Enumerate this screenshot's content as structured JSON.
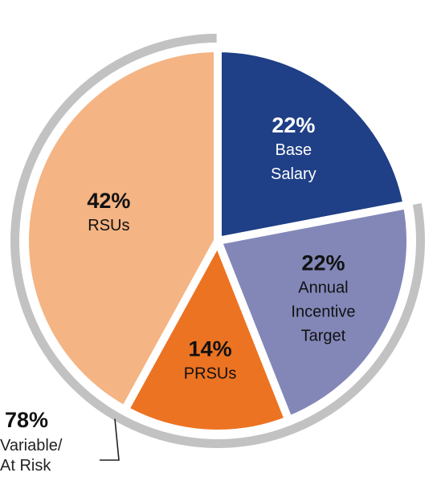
{
  "chart_data": {
    "type": "pie",
    "slices": [
      {
        "key": "base_salary",
        "value": 22,
        "pct_label": "22%",
        "label_lines": [
          "Base",
          "Salary"
        ],
        "color": "#1f3f86",
        "text_color": "#ffffff"
      },
      {
        "key": "annual_incentive",
        "value": 22,
        "pct_label": "22%",
        "label_lines": [
          "Annual",
          "Incentive",
          "Target"
        ],
        "color": "#8387b8",
        "text_color": "#111111"
      },
      {
        "key": "prsus",
        "value": 14,
        "pct_label": "14%",
        "label_lines": [
          "PRSUs"
        ],
        "color": "#ec7322",
        "text_color": "#111111"
      },
      {
        "key": "rsus",
        "value": 42,
        "pct_label": "42%",
        "label_lines": [
          "RSUs"
        ],
        "color": "#f4b483",
        "text_color": "#111111"
      }
    ],
    "ring": {
      "covers": [
        "annual_incentive",
        "prsus",
        "rsus"
      ],
      "color": "#c2c2c2"
    },
    "callout": {
      "pct_label": "78%",
      "label_lines": [
        "Variable/",
        "At Risk"
      ],
      "line_color": "#222222"
    }
  }
}
